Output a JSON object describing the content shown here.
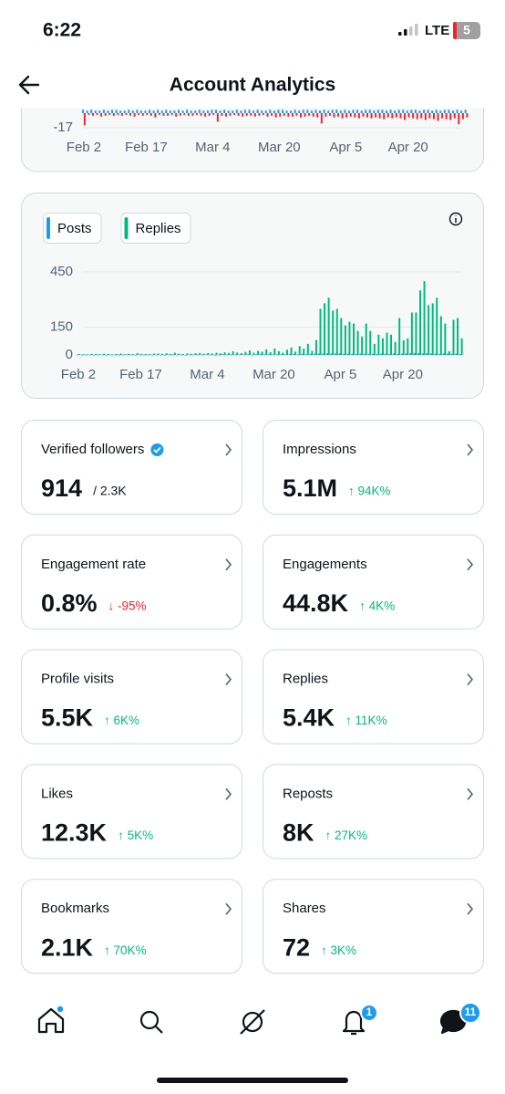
{
  "status_bar": {
    "time": "6:22",
    "network": "LTE",
    "battery": "5"
  },
  "header": {
    "title": "Account Analytics"
  },
  "chart_data": [
    {
      "type": "bar",
      "categories": [
        "Feb 2",
        null,
        null,
        null,
        null,
        null,
        null,
        null,
        null,
        null,
        null,
        null,
        null,
        null,
        null,
        "Feb 17",
        null,
        null,
        null,
        null,
        null,
        null,
        null,
        null,
        null,
        null,
        null,
        null,
        null,
        null,
        null,
        "Mar 4",
        null,
        null,
        null,
        null,
        null,
        null,
        null,
        null,
        null,
        null,
        null,
        null,
        null,
        null,
        null,
        "Mar 20",
        null,
        null,
        null,
        null,
        null,
        null,
        null,
        null,
        null,
        null,
        null,
        null,
        null,
        null,
        null,
        "Apr 5",
        null,
        null,
        null,
        null,
        null,
        null,
        null,
        null,
        null,
        null,
        null,
        null,
        null,
        null,
        "Apr 20",
        null,
        null,
        null,
        null,
        null,
        null,
        null,
        null,
        null,
        null,
        null,
        null,
        null,
        null
      ],
      "series": [
        {
          "color": "#1d9bf0",
          "values": [
            4,
            3,
            4,
            3,
            3,
            4,
            3,
            4,
            4,
            3,
            3,
            4,
            3,
            4,
            3,
            3,
            4,
            3,
            4,
            3,
            4,
            3,
            3,
            4,
            3,
            4,
            3,
            3,
            4,
            3,
            3,
            4,
            4,
            3,
            4,
            3,
            3,
            4,
            3,
            4,
            4,
            3,
            4,
            3,
            3,
            4,
            3,
            4,
            4,
            3,
            3,
            4,
            3,
            4,
            4,
            3,
            4,
            3,
            4,
            3,
            4,
            4,
            3,
            4,
            3,
            4,
            4,
            3,
            4,
            4,
            3,
            4,
            4,
            3,
            4,
            3,
            4,
            4,
            3,
            4,
            4,
            3,
            4,
            4,
            3,
            4,
            3,
            4,
            4,
            3,
            4,
            3,
            4
          ]
        },
        {
          "color": "#f4212e",
          "values": [
            -14,
            -2,
            -3,
            -2,
            -4,
            -3,
            -2,
            -3,
            -2,
            -3,
            -2,
            -3,
            -4,
            -2,
            -3,
            -2,
            -3,
            -5,
            -2,
            -3,
            -3,
            -2,
            -4,
            -3,
            -2,
            -3,
            -3,
            -2,
            -3,
            -4,
            -3,
            -2,
            -10,
            -3,
            -4,
            -3,
            -2,
            -3,
            -4,
            -3,
            -3,
            -4,
            -3,
            -2,
            -4,
            -3,
            -5,
            -4,
            -3,
            -4,
            -4,
            -3,
            -5,
            -4,
            -3,
            -4,
            -5,
            -12,
            -4,
            -3,
            -5,
            -4,
            -6,
            -5,
            -4,
            -5,
            -6,
            -4,
            -5,
            -6,
            -5,
            -6,
            -7,
            -5,
            -6,
            -5,
            -6,
            -8,
            -5,
            -6,
            -7,
            -6,
            -8,
            -6,
            -7,
            -9,
            -6,
            -7,
            -8,
            -6,
            -13,
            -7,
            -5
          ]
        }
      ],
      "ylim": [
        -17,
        5
      ],
      "yticks": [
        -17
      ],
      "grid": true
    },
    {
      "type": "bar",
      "categories": [
        "Feb 2",
        null,
        null,
        null,
        null,
        null,
        null,
        null,
        null,
        null,
        null,
        null,
        null,
        null,
        null,
        "Feb 17",
        null,
        null,
        null,
        null,
        null,
        null,
        null,
        null,
        null,
        null,
        null,
        null,
        null,
        null,
        null,
        "Mar 4",
        null,
        null,
        null,
        null,
        null,
        null,
        null,
        null,
        null,
        null,
        null,
        null,
        null,
        null,
        null,
        "Mar 20",
        null,
        null,
        null,
        null,
        null,
        null,
        null,
        null,
        null,
        null,
        null,
        null,
        null,
        null,
        null,
        "Apr 5",
        null,
        null,
        null,
        null,
        null,
        null,
        null,
        null,
        null,
        null,
        null,
        null,
        null,
        null,
        "Apr 20",
        null,
        null,
        null,
        null,
        null,
        null,
        null,
        null,
        null,
        null,
        null,
        null,
        null,
        null
      ],
      "series": [
        {
          "name": "Posts",
          "color": "#1d9bf0",
          "values": [
            2,
            1,
            2,
            2,
            1,
            3,
            2,
            1,
            2,
            2,
            1,
            2,
            3,
            2,
            1,
            2,
            2,
            3,
            1,
            2,
            2,
            1,
            2,
            3,
            2,
            2,
            1,
            2,
            3,
            2,
            2,
            3,
            2,
            1,
            2,
            4,
            3,
            2,
            3,
            2,
            3,
            4,
            2,
            3,
            5,
            3,
            4,
            3,
            2,
            4,
            3,
            5,
            4,
            3,
            6,
            4,
            5,
            6,
            8,
            7,
            9,
            8,
            7,
            8,
            6,
            7,
            6,
            5,
            7,
            6,
            5,
            6,
            5,
            7,
            6,
            5,
            8,
            6,
            7,
            8,
            9,
            10,
            9,
            8,
            9,
            8,
            7,
            5,
            8,
            7,
            6,
            7,
            5
          ]
        },
        {
          "name": "Replies",
          "color": "#00ba7c",
          "values": [
            5,
            4,
            3,
            6,
            5,
            4,
            7,
            6,
            3,
            5,
            8,
            4,
            6,
            5,
            10,
            6,
            5,
            4,
            7,
            8,
            5,
            9,
            6,
            12,
            7,
            5,
            8,
            6,
            9,
            11,
            7,
            10,
            8,
            12,
            9,
            14,
            11,
            20,
            13,
            10,
            16,
            25,
            12,
            22,
            18,
            30,
            15,
            35,
            20,
            12,
            28,
            40,
            18,
            48,
            35,
            60,
            22,
            80,
            250,
            280,
            310,
            240,
            250,
            200,
            160,
            180,
            170,
            130,
            100,
            170,
            130,
            60,
            110,
            90,
            120,
            110,
            70,
            200,
            80,
            90,
            230,
            230,
            350,
            400,
            270,
            280,
            310,
            210,
            170,
            20,
            190,
            200,
            90
          ]
        }
      ],
      "ylim": [
        0,
        450
      ],
      "yticks": [
        0,
        150,
        450
      ],
      "grid": true,
      "legend": "top-left"
    }
  ],
  "metrics": [
    {
      "label": "Verified followers",
      "value": "914",
      "total": "/ 2.3K",
      "verified": true
    },
    {
      "label": "Impressions",
      "value": "5.1M",
      "change": "↑ 94K%",
      "change_color": "#00ba7c"
    },
    {
      "label": "Engagement rate",
      "value": "0.8%",
      "change": "↓ -95%",
      "change_color": "#f4212e"
    },
    {
      "label": "Engagements",
      "value": "44.8K",
      "change": "↑ 4K%",
      "change_color": "#00ba7c"
    },
    {
      "label": "Profile visits",
      "value": "5.5K",
      "change": "↑ 6K%",
      "change_color": "#00ba7c"
    },
    {
      "label": "Replies",
      "value": "5.4K",
      "change": "↑ 11K%",
      "change_color": "#00ba7c"
    },
    {
      "label": "Likes",
      "value": "12.3K",
      "change": "↑ 5K%",
      "change_color": "#00ba7c"
    },
    {
      "label": "Reposts",
      "value": "8K",
      "change": "↑ 27K%",
      "change_color": "#00ba7c"
    },
    {
      "label": "Bookmarks",
      "value": "2.1K",
      "change": "↑ 70K%",
      "change_color": "#00ba7c"
    },
    {
      "label": "Shares",
      "value": "72",
      "change": "↑ 3K%",
      "change_color": "#00ba7c"
    }
  ],
  "nav": {
    "notifications_badge": "1",
    "messages_badge": "11"
  }
}
